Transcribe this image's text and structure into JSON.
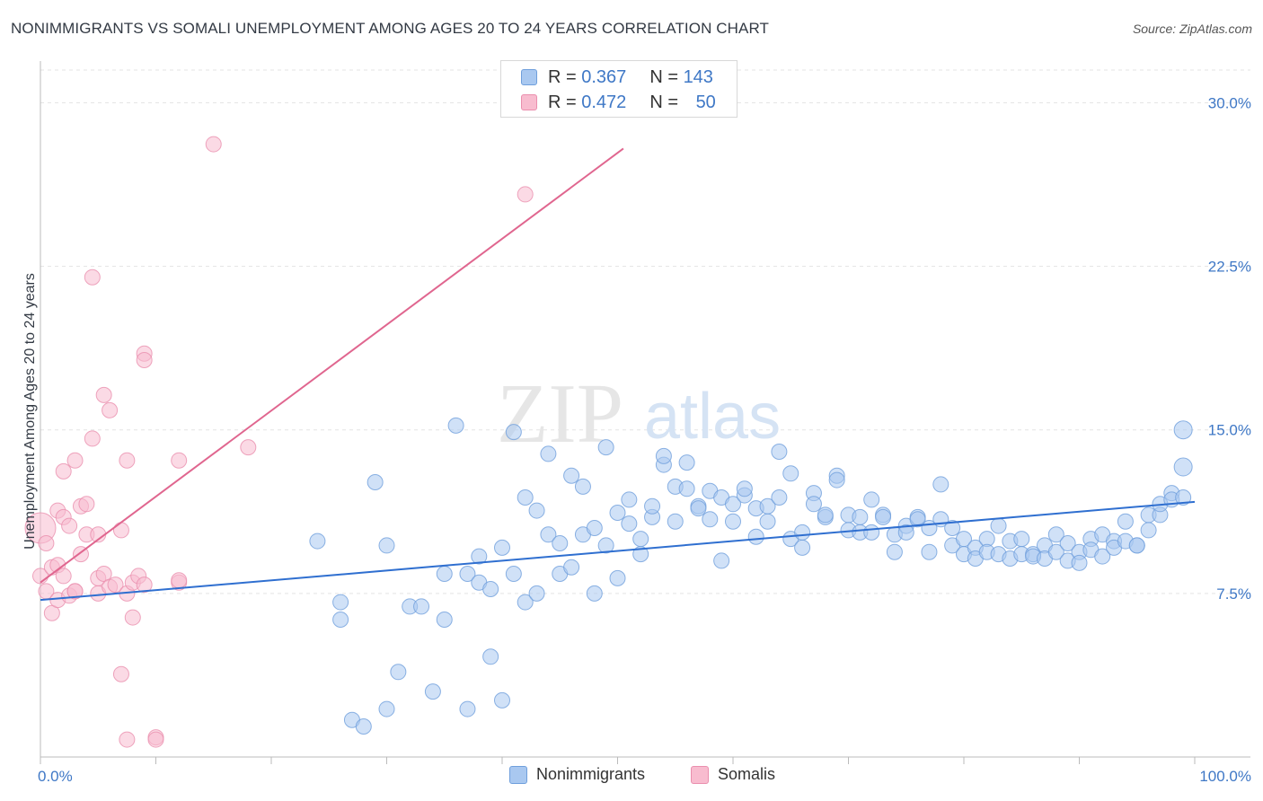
{
  "header": {
    "title": "NONIMMIGRANTS VS SOMALI UNEMPLOYMENT AMONG AGES 20 TO 24 YEARS CORRELATION CHART",
    "source": "Source: ZipAtlas.com"
  },
  "watermark": {
    "zip": "ZIP",
    "atlas": "atlas"
  },
  "legend_top": {
    "rows": [
      {
        "r_label": "R =",
        "r_value": "0.367",
        "n_label": "N =",
        "n_value": "143"
      },
      {
        "r_label": "R =",
        "r_value": "0.472",
        "n_label": "N =",
        "n_value": "50"
      }
    ]
  },
  "legend_bottom": {
    "items": [
      "Nonimmigrants",
      "Somalis"
    ]
  },
  "colors": {
    "blue_fill": "#a9c8f0",
    "blue_stroke": "#6f9fdc",
    "blue_line": "#2f6fd0",
    "pink_fill": "#f8bccf",
    "pink_stroke": "#ea8fae",
    "pink_line": "#e0668f",
    "tick_text": "#3f78c6",
    "grid": "#e3e3e3"
  },
  "chart_data": {
    "type": "scatter",
    "title": "NONIMMIGRANTS VS SOMALI UNEMPLOYMENT AMONG AGES 20 TO 24 YEARS CORRELATION CHART",
    "xlabel": "",
    "ylabel": "Unemployment Among Ages 20 to 24 years",
    "xlim": [
      0,
      100
    ],
    "ylim": [
      0,
      31.5
    ],
    "x_tick_labels": [
      "0.0%",
      "100.0%"
    ],
    "y_ticks": [
      7.5,
      15.0,
      22.5,
      30.0
    ],
    "y_tick_labels": [
      "7.5%",
      "15.0%",
      "22.5%",
      "30.0%"
    ],
    "grid": true,
    "legend_position": "top-center",
    "series": [
      {
        "name": "Nonimmigrants",
        "color": "#a9c8f0",
        "r": 0.367,
        "n": 143,
        "trend": {
          "x": [
            0,
            100
          ],
          "y": [
            7.2,
            11.7
          ]
        },
        "points": [
          [
            24,
            9.9
          ],
          [
            26,
            7.1
          ],
          [
            26,
            6.3
          ],
          [
            27,
            1.7
          ],
          [
            28,
            1.4
          ],
          [
            29,
            12.6
          ],
          [
            30,
            9.7
          ],
          [
            30,
            2.2
          ],
          [
            31,
            3.9
          ],
          [
            32,
            6.9
          ],
          [
            33,
            6.9
          ],
          [
            34,
            3.0
          ],
          [
            35,
            6.3
          ],
          [
            36,
            15.2
          ],
          [
            35,
            8.4
          ],
          [
            37,
            8.4
          ],
          [
            37,
            2.2
          ],
          [
            38,
            9.2
          ],
          [
            38,
            8.0
          ],
          [
            39,
            7.7
          ],
          [
            39,
            4.6
          ],
          [
            40,
            9.6
          ],
          [
            40,
            2.6
          ],
          [
            41,
            14.9
          ],
          [
            41,
            8.4
          ],
          [
            42,
            11.9
          ],
          [
            42,
            7.1
          ],
          [
            43,
            11.3
          ],
          [
            43,
            7.5
          ],
          [
            44,
            10.2
          ],
          [
            44,
            13.9
          ],
          [
            45,
            9.8
          ],
          [
            45,
            8.4
          ],
          [
            46,
            8.7
          ],
          [
            46,
            12.9
          ],
          [
            47,
            10.2
          ],
          [
            47,
            12.4
          ],
          [
            48,
            10.5
          ],
          [
            48,
            7.5
          ],
          [
            49,
            14.2
          ],
          [
            49,
            9.7
          ],
          [
            50,
            11.2
          ],
          [
            50,
            8.2
          ],
          [
            51,
            10.7
          ],
          [
            51,
            11.8
          ],
          [
            52,
            9.3
          ],
          [
            52,
            10.0
          ],
          [
            53,
            11.0
          ],
          [
            53,
            11.5
          ],
          [
            54,
            13.4
          ],
          [
            54,
            13.8
          ],
          [
            55,
            12.4
          ],
          [
            55,
            10.8
          ],
          [
            56,
            13.5
          ],
          [
            56,
            12.3
          ],
          [
            57,
            11.5
          ],
          [
            57,
            11.4
          ],
          [
            58,
            10.9
          ],
          [
            58,
            12.2
          ],
          [
            59,
            9.0
          ],
          [
            59,
            11.9
          ],
          [
            60,
            11.6
          ],
          [
            60,
            10.8
          ],
          [
            61,
            12.0
          ],
          [
            61,
            12.3
          ],
          [
            62,
            11.4
          ],
          [
            62,
            10.1
          ],
          [
            63,
            11.5
          ],
          [
            63,
            10.8
          ],
          [
            64,
            14.0
          ],
          [
            64,
            11.9
          ],
          [
            65,
            10.0
          ],
          [
            65,
            13.0
          ],
          [
            66,
            9.6
          ],
          [
            66,
            10.3
          ],
          [
            67,
            12.1
          ],
          [
            67,
            11.6
          ],
          [
            68,
            11.0
          ],
          [
            68,
            11.1
          ],
          [
            69,
            12.9
          ],
          [
            69,
            12.7
          ],
          [
            70,
            11.1
          ],
          [
            70,
            10.4
          ],
          [
            71,
            11.0
          ],
          [
            71,
            10.3
          ],
          [
            72,
            11.8
          ],
          [
            72,
            10.3
          ],
          [
            73,
            11.1
          ],
          [
            73,
            11.0
          ],
          [
            74,
            9.4
          ],
          [
            74,
            10.2
          ],
          [
            75,
            10.6
          ],
          [
            75,
            10.3
          ],
          [
            76,
            11.0
          ],
          [
            76,
            10.9
          ],
          [
            77,
            9.4
          ],
          [
            77,
            10.5
          ],
          [
            78,
            12.5
          ],
          [
            78,
            10.9
          ],
          [
            79,
            10.5
          ],
          [
            79,
            9.7
          ],
          [
            80,
            10.0
          ],
          [
            80,
            9.3
          ],
          [
            81,
            9.6
          ],
          [
            81,
            9.1
          ],
          [
            82,
            10.0
          ],
          [
            82,
            9.4
          ],
          [
            83,
            10.6
          ],
          [
            83,
            9.3
          ],
          [
            84,
            9.9
          ],
          [
            84,
            9.1
          ],
          [
            85,
            10.0
          ],
          [
            85,
            9.3
          ],
          [
            86,
            9.3
          ],
          [
            86,
            9.2
          ],
          [
            87,
            9.7
          ],
          [
            87,
            9.1
          ],
          [
            88,
            10.2
          ],
          [
            88,
            9.4
          ],
          [
            89,
            9.8
          ],
          [
            89,
            9.0
          ],
          [
            90,
            9.4
          ],
          [
            90,
            8.9
          ],
          [
            91,
            10.0
          ],
          [
            91,
            9.5
          ],
          [
            92,
            10.2
          ],
          [
            92,
            9.2
          ],
          [
            93,
            9.9
          ],
          [
            93,
            9.6
          ],
          [
            94,
            10.8
          ],
          [
            94,
            9.9
          ],
          [
            95,
            9.7
          ],
          [
            95,
            9.7
          ],
          [
            96,
            10.4
          ],
          [
            96,
            11.1
          ],
          [
            97,
            11.1
          ],
          [
            97,
            11.6
          ],
          [
            98,
            12.1
          ],
          [
            98,
            11.8
          ],
          [
            99,
            13.3
          ],
          [
            99,
            15.0
          ],
          [
            99,
            11.9
          ]
        ]
      },
      {
        "name": "Somalis",
        "color": "#f8bccf",
        "r": 0.472,
        "n": 50,
        "trend": {
          "x": [
            0,
            50.5
          ],
          "y": [
            8.0,
            27.9
          ]
        },
        "points": [
          [
            0,
            10.5
          ],
          [
            0,
            8.3
          ],
          [
            0.5,
            7.6
          ],
          [
            0.5,
            9.8
          ],
          [
            1,
            8.7
          ],
          [
            1,
            6.6
          ],
          [
            1.5,
            8.8
          ],
          [
            1.5,
            7.2
          ],
          [
            1.5,
            11.3
          ],
          [
            2,
            11.0
          ],
          [
            2,
            8.3
          ],
          [
            2,
            13.1
          ],
          [
            2.5,
            7.4
          ],
          [
            2.5,
            10.6
          ],
          [
            3,
            13.6
          ],
          [
            3,
            7.6
          ],
          [
            3,
            7.6
          ],
          [
            3.5,
            11.5
          ],
          [
            3.5,
            9.3
          ],
          [
            4,
            11.6
          ],
          [
            4,
            10.2
          ],
          [
            4.5,
            22.0
          ],
          [
            4.5,
            14.6
          ],
          [
            5,
            10.2
          ],
          [
            5,
            8.2
          ],
          [
            5,
            7.5
          ],
          [
            5.5,
            8.4
          ],
          [
            5.5,
            16.6
          ],
          [
            6,
            15.9
          ],
          [
            6,
            7.8
          ],
          [
            6.5,
            7.9
          ],
          [
            7,
            10.4
          ],
          [
            7,
            3.8
          ],
          [
            7.5,
            13.6
          ],
          [
            7.5,
            7.5
          ],
          [
            8,
            8.0
          ],
          [
            8,
            6.4
          ],
          [
            8.5,
            8.3
          ],
          [
            9,
            18.5
          ],
          [
            9,
            18.2
          ],
          [
            9,
            7.9
          ],
          [
            10,
            0.9
          ],
          [
            10,
            0.8
          ],
          [
            12,
            8.0
          ],
          [
            12,
            13.6
          ],
          [
            12,
            8.1
          ],
          [
            15,
            28.1
          ],
          [
            18,
            14.2
          ],
          [
            42,
            25.8
          ],
          [
            7.5,
            0.8
          ]
        ]
      }
    ]
  }
}
